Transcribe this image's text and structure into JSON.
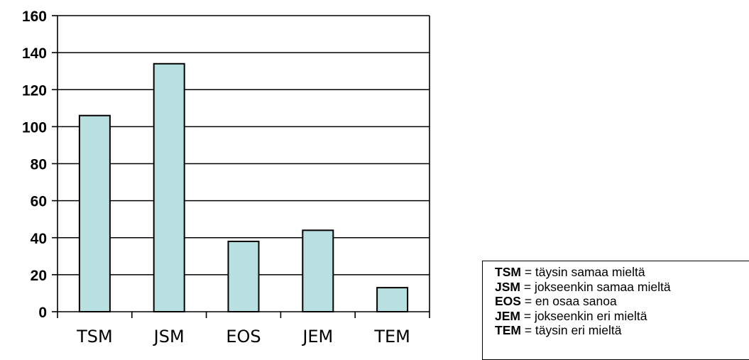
{
  "chart_data": {
    "type": "bar",
    "categories": [
      "TSM",
      "JSM",
      "EOS",
      "JEM",
      "TEM"
    ],
    "values": [
      106,
      134,
      38,
      44,
      13
    ],
    "ylim": [
      0,
      160
    ],
    "yticks": [
      0,
      20,
      40,
      60,
      80,
      100,
      120,
      140,
      160
    ],
    "grid": true,
    "bar_color": "#b9e0e1",
    "bar_edge_color": "#000000",
    "legend": [
      {
        "abbr": "TSM",
        "sep": " = ",
        "text": "täysin samaa mieltä"
      },
      {
        "abbr": "JSM",
        "sep": " = ",
        "text": "jokseenkin samaa mieltä"
      },
      {
        "abbr": "EOS",
        "sep": " = ",
        "text": "en osaa sanoa"
      },
      {
        "abbr": "JEM",
        "sep": " = ",
        "text": "jokseenkin eri mieltä"
      },
      {
        "abbr": "TEM",
        "sep": " = ",
        "text": "täysin eri mieltä"
      }
    ]
  }
}
